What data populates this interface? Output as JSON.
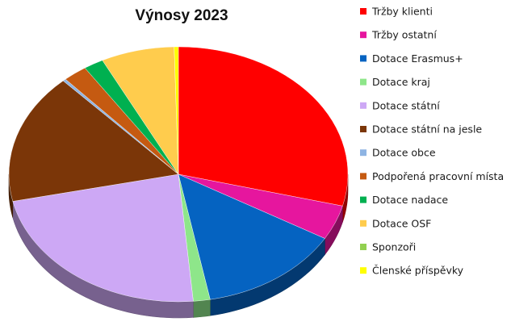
{
  "chart_data": {
    "type": "pie",
    "title": "Výnosy 2023",
    "legend_position": "right",
    "three_d": true,
    "series": [
      {
        "name": "Tržby klienti",
        "value": 29.0,
        "color": "#ff0000"
      },
      {
        "name": "Tržby ostatní",
        "value": 4.4,
        "color": "#e6169e"
      },
      {
        "name": "Dotace Erasmus+",
        "value": 13.6,
        "color": "#0563c1"
      },
      {
        "name": "Dotace kraj",
        "value": 1.6,
        "color": "#8ee68a"
      },
      {
        "name": "Dotace státní",
        "value": 23.0,
        "color": "#cda8f5"
      },
      {
        "name": "Dotace státní na jesle",
        "value": 16.5,
        "color": "#7b3608"
      },
      {
        "name": "Dotace obce",
        "value": 0.3,
        "color": "#8eb4e3"
      },
      {
        "name": "Podpořená pracovní místa",
        "value": 2.3,
        "color": "#c55a11"
      },
      {
        "name": "Dotace nadace",
        "value": 1.9,
        "color": "#00b050"
      },
      {
        "name": "Dotace OSF",
        "value": 7.0,
        "color": "#ffcc4d"
      },
      {
        "name": "Sponzoři",
        "value": 0.0,
        "color": "#92d050"
      },
      {
        "name": "Členské příspěvky",
        "value": 0.4,
        "color": "#ffff00"
      }
    ]
  }
}
